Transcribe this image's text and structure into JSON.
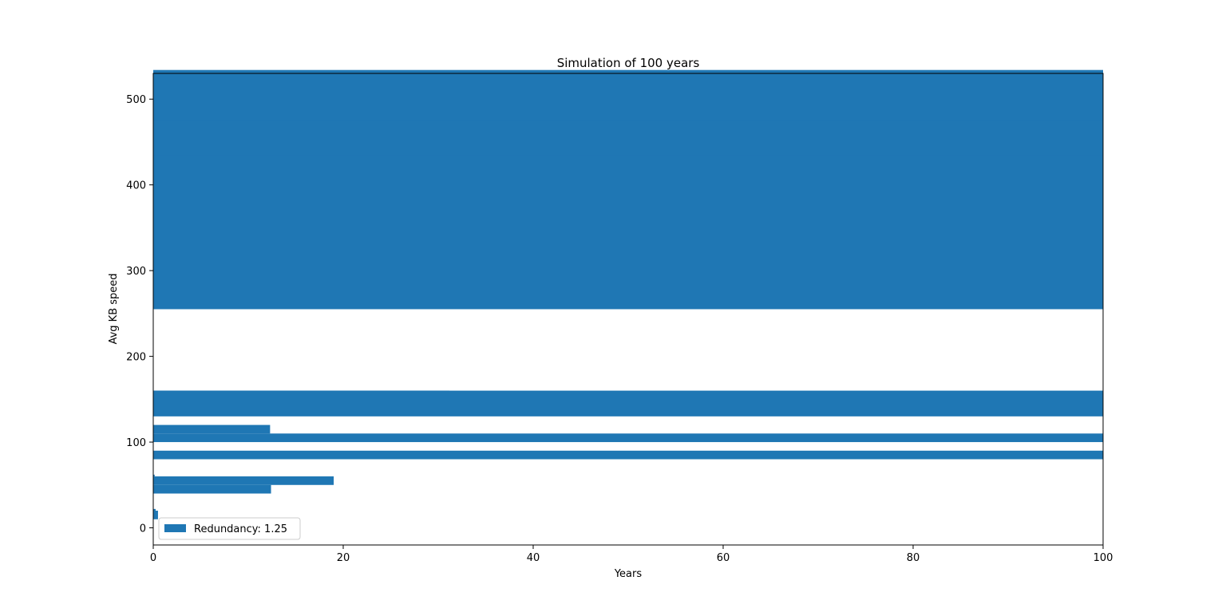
{
  "chart_data": {
    "type": "bar",
    "orientation": "horizontal",
    "title": "Simulation of 100 years",
    "xlabel": "Years",
    "ylabel": "Avg KB speed",
    "xlim": [
      0,
      100
    ],
    "ylim": [
      -20,
      530
    ],
    "xticks": [
      0,
      20,
      40,
      60,
      80,
      100
    ],
    "yticks": [
      0,
      100,
      200,
      300,
      400,
      500
    ],
    "grid": false,
    "legend_position": "lower-left",
    "color": "#1f77b4",
    "series": [
      {
        "name": "Redundancy: 1.25",
        "bars": [
          {
            "y": 474,
            "height": 60,
            "value": 100
          },
          {
            "y": 395,
            "height": 80,
            "value": 100
          },
          {
            "y": 255,
            "height": 180,
            "value": 100
          },
          {
            "y": 150,
            "height": 10,
            "value": 31.2
          },
          {
            "y": 130,
            "height": 30,
            "value": 100
          },
          {
            "y": 110,
            "height": 10,
            "value": 12.3
          },
          {
            "y": 100,
            "height": 10,
            "value": 100
          },
          {
            "y": 80,
            "height": 10,
            "value": 100
          },
          {
            "y": 60,
            "height": 2,
            "value": 0.15
          },
          {
            "y": 50,
            "height": 10,
            "value": 19
          },
          {
            "y": 40,
            "height": 10,
            "value": 12.4
          },
          {
            "y": 20,
            "height": 2,
            "value": 0.25
          },
          {
            "y": 10,
            "height": 10,
            "value": 0.5
          }
        ]
      }
    ]
  }
}
